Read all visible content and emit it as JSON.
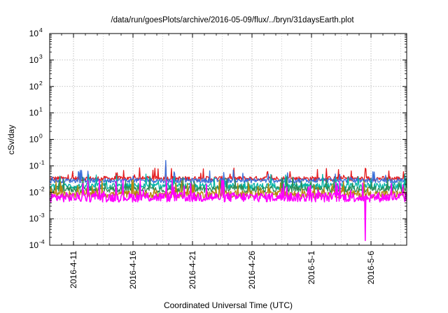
{
  "chart_data": {
    "type": "line",
    "title": "/data/run/goesPlots/archive/2016-05-09/flux/../bryn/31daysEarth.plot",
    "xlabel": "Coordinated Universal Time (UTC)",
    "ylabel": "cSv/day",
    "yscale": "log",
    "ylim": [
      0.0001,
      10000
    ],
    "xlim": [
      "2016-04-09",
      "2016-05-09"
    ],
    "grid": true,
    "y_ticks": [
      {
        "base": "10",
        "exp": "4",
        "value": 10000
      },
      {
        "base": "10",
        "exp": "3",
        "value": 1000
      },
      {
        "base": "10",
        "exp": "2",
        "value": 100
      },
      {
        "base": "10",
        "exp": "1",
        "value": 10
      },
      {
        "base": "10",
        "exp": "0",
        "value": 1
      },
      {
        "base": "10",
        "exp": "-1",
        "value": 0.1
      },
      {
        "base": "10",
        "exp": "-2",
        "value": 0.01
      },
      {
        "base": "10",
        "exp": "-3",
        "value": 0.001
      },
      {
        "base": "10",
        "exp": "-4",
        "value": 0.0001
      }
    ],
    "x_ticks": [
      "2016-4-11",
      "2016-4-16",
      "2016-4-21",
      "2016-4-26",
      "2016-5-1",
      "2016-5-6"
    ],
    "x_tick_dates": [
      "2016-04-11",
      "2016-04-16",
      "2016-04-21",
      "2016-04-26",
      "2016-05-01",
      "2016-05-06"
    ],
    "series": [
      {
        "color": "#e41a1c",
        "baseline": 0.033,
        "spread": 0.09,
        "spike_max": 0.085,
        "spikes": [
          {
            "date": "2016-04-18T18:00",
            "value": 0.14
          }
        ]
      },
      {
        "color": "#3a6fd8",
        "baseline": 0.028,
        "spread": 0.09,
        "spike_max": 0.07,
        "spikes": [
          {
            "date": "2016-04-18T18:00",
            "value": 0.16
          }
        ]
      },
      {
        "color": "#00b3a4",
        "baseline": 0.017,
        "spread": 0.12,
        "spike_max": 0.05,
        "spikes": []
      },
      {
        "color": "#2e8b57",
        "baseline": 0.013,
        "spread": 0.12,
        "spike_max": 0.04,
        "spikes": []
      },
      {
        "color": "#b8860b",
        "baseline": 0.0085,
        "spread": 0.14,
        "spike_max": 0.03,
        "spikes": []
      },
      {
        "color": "#ff00ff",
        "baseline": 0.0065,
        "spread": 0.18,
        "spike_max": 0.03,
        "spikes": [
          {
            "date": "2016-05-05T12:00",
            "value": 0.00015
          }
        ]
      }
    ]
  }
}
